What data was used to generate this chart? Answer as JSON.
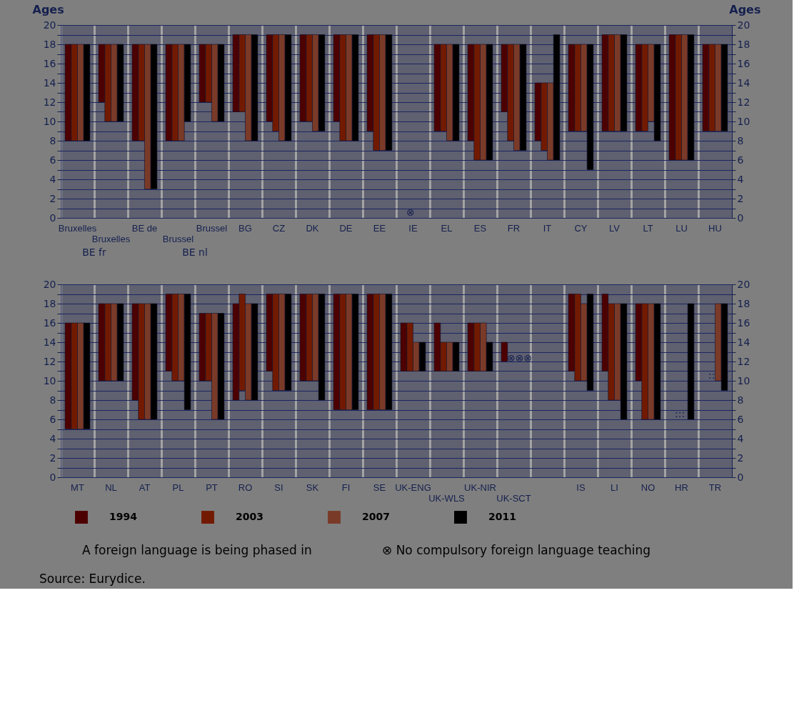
{
  "chart_data": [
    {
      "type": "bar",
      "ylabel": "Ages",
      "y2label": "Ages",
      "grid": true,
      "legend": "bottom",
      "categories": [
        "Bruxelles",
        "Bruxelles",
        "BE de",
        "Brussel",
        "Brussel",
        "BG",
        "CZ",
        "DK",
        "DE",
        "EE",
        "IE",
        "EL",
        "ES",
        "FR",
        "IT",
        "CY",
        "LV",
        "LT",
        "LU",
        "HU"
      ],
      "series": [
        {
          "name": "1994",
          "color": "#4d0000",
          "base": [
            8,
            12,
            8,
            8,
            12,
            11,
            10,
            10,
            10,
            9,
            null,
            9,
            8,
            11,
            8,
            9,
            9,
            9,
            6,
            9
          ],
          "values": [
            10,
            6,
            10,
            10,
            6,
            8,
            9,
            9,
            9,
            10,
            null,
            9,
            10,
            7,
            6,
            9,
            10,
            9,
            13,
            9
          ]
        },
        {
          "name": "2003",
          "color": "#721a00",
          "base": [
            8,
            10,
            8,
            8,
            12,
            11,
            9,
            10,
            8,
            7,
            null,
            9,
            6,
            8,
            7,
            9,
            9,
            9,
            6,
            9
          ],
          "values": [
            10,
            8,
            10,
            10,
            6,
            8,
            10,
            9,
            11,
            12,
            null,
            9,
            12,
            10,
            7,
            9,
            10,
            9,
            13,
            9
          ]
        },
        {
          "name": "2007",
          "color": "#7a3a28",
          "base": [
            8,
            10,
            3,
            8,
            10,
            8,
            8,
            9,
            8,
            7,
            null,
            8,
            6,
            7,
            6,
            9,
            9,
            10,
            6,
            9
          ],
          "values": [
            10,
            8,
            15,
            10,
            8,
            11,
            11,
            10,
            11,
            12,
            null,
            10,
            12,
            11,
            8,
            9,
            10,
            8,
            13,
            9
          ]
        },
        {
          "name": "2011",
          "color": "#000000",
          "base": [
            8,
            10,
            3,
            10,
            10,
            8,
            8,
            9,
            8,
            7,
            null,
            8,
            6,
            7,
            6,
            5,
            9,
            8,
            6,
            9
          ],
          "values": [
            10,
            8,
            15,
            8,
            8,
            11,
            11,
            10,
            11,
            12,
            null,
            10,
            12,
            11,
            13,
            13,
            10,
            10,
            13,
            9
          ]
        }
      ],
      "ylim": [
        0,
        20
      ],
      "yticks": [
        0,
        {
          "value": 1,
          "label": null
        },
        2,
        {
          "value": 3,
          "label": null
        },
        4,
        {
          "value": 5,
          "label": null
        },
        6,
        {
          "value": 7,
          "label": null
        },
        8,
        {
          "value": 9,
          "label": null
        },
        10,
        {
          "value": 11,
          "label": null
        },
        12,
        {
          "value": 13,
          "label": null
        },
        14,
        {
          "value": 15,
          "label": null
        },
        16,
        {
          "value": 17,
          "label": null
        },
        18,
        {
          "value": 19,
          "label": null
        },
        20
      ],
      "y2lim": [
        0,
        20
      ],
      "y2ticks": [
        0,
        {
          "value": 1,
          "label": null
        },
        2,
        {
          "value": 3,
          "label": null
        },
        4,
        {
          "value": 5,
          "label": null
        },
        6,
        {
          "value": 7,
          "label": null
        },
        8,
        {
          "value": 9,
          "label": null
        },
        10,
        {
          "value": 11,
          "label": null
        },
        12,
        {
          "value": 13,
          "label": null
        },
        14,
        {
          "value": 15,
          "label": null
        },
        16,
        {
          "value": 17,
          "label": null
        },
        18,
        {
          "value": 19,
          "label": null
        },
        20
      ],
      "annotations": [
        "BE fr",
        "BE nl",
        "⊗"
      ]
    },
    {
      "type": "bar",
      "grid": true,
      "legend": "bottom",
      "categories": [
        "MT",
        "NL",
        "AT",
        "PL",
        "PT",
        "RO",
        "SI",
        "SK",
        "FI",
        "SE",
        "UK-ENG",
        "UK-WLS",
        "UK-NIR",
        "UK-SCT",
        null,
        "IS",
        "LI",
        "NO",
        "HR",
        "TR"
      ],
      "series": [
        {
          "name": "1994",
          "color": "#4d0000",
          "base": [
            5,
            10,
            8,
            11,
            10,
            8,
            11,
            10,
            7,
            7,
            11,
            11,
            11,
            12,
            null,
            11,
            11,
            10,
            null,
            null
          ],
          "values": [
            11,
            8,
            10,
            8,
            7,
            10,
            8,
            9,
            12,
            12,
            5,
            5,
            5,
            2,
            null,
            8,
            8,
            8,
            null,
            null
          ]
        },
        {
          "name": "2003",
          "color": "#721a00",
          "base": [
            5,
            10,
            6,
            10,
            10,
            9,
            9,
            10,
            7,
            7,
            11,
            11,
            11,
            null,
            null,
            10,
            8,
            6,
            null,
            null
          ],
          "values": [
            11,
            8,
            12,
            9,
            7,
            10,
            10,
            9,
            12,
            12,
            5,
            3,
            5,
            null,
            null,
            9,
            10,
            12,
            null,
            null
          ]
        },
        {
          "name": "2007",
          "color": "#7a3a28",
          "base": [
            5,
            10,
            6,
            10,
            6,
            8,
            9,
            10,
            7,
            7,
            11,
            11,
            11,
            null,
            null,
            10,
            8,
            6,
            null,
            10
          ],
          "values": [
            11,
            8,
            12,
            9,
            11,
            10,
            10,
            9,
            12,
            12,
            3,
            3,
            5,
            null,
            null,
            8,
            10,
            12,
            null,
            8
          ]
        },
        {
          "name": "2011",
          "color": "#000000",
          "base": [
            5,
            10,
            6,
            7,
            6,
            8,
            9,
            8,
            7,
            7,
            11,
            11,
            11,
            null,
            null,
            9,
            6,
            6,
            6,
            9
          ],
          "values": [
            11,
            8,
            12,
            12,
            11,
            10,
            10,
            11,
            12,
            12,
            3,
            3,
            3,
            null,
            null,
            10,
            12,
            12,
            12,
            9
          ]
        }
      ],
      "ylim": [
        0,
        20
      ],
      "yticks": [
        0,
        {
          "value": 1,
          "label": null
        },
        2,
        {
          "value": 3,
          "label": null
        },
        4,
        {
          "value": 5,
          "label": null
        },
        6,
        {
          "value": 7,
          "label": null
        },
        8,
        {
          "value": 9,
          "label": null
        },
        10,
        {
          "value": 11,
          "label": null
        },
        12,
        {
          "value": 13,
          "label": null
        },
        14,
        {
          "value": 15,
          "label": null
        },
        16,
        {
          "value": 17,
          "label": null
        },
        18,
        {
          "value": 19,
          "label": null
        },
        20
      ],
      "y2lim": [
        0,
        20
      ],
      "y2ticks": [
        0,
        {
          "value": 1,
          "label": null
        },
        2,
        {
          "value": 3,
          "label": null
        },
        4,
        {
          "value": 5,
          "label": null
        },
        6,
        {
          "value": 7,
          "label": null
        },
        8,
        {
          "value": 9,
          "label": null
        },
        10,
        {
          "value": 11,
          "label": null
        },
        12,
        {
          "value": 13,
          "label": null
        },
        14,
        {
          "value": 15,
          "label": null
        },
        16,
        {
          "value": 17,
          "label": null
        },
        18,
        {
          "value": 19,
          "label": null
        },
        20
      ],
      "annotations": [
        "⊗⊗⊗",
        ":::",
        "::",
        "A foreign language is being phased in",
        "⊗  No compulsory foreign language teaching",
        "Source: Eurydice."
      ]
    }
  ]
}
